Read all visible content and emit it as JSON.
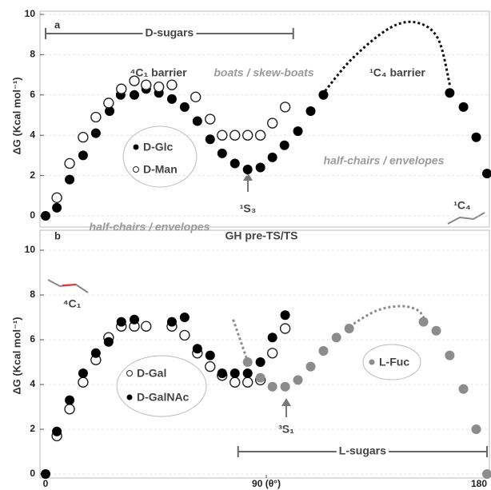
{
  "chart_data": [
    {
      "type": "scatter",
      "panel_label": "a",
      "y_label": "ΔG (Kcal mol⁻¹)",
      "xlim": [
        0,
        180
      ],
      "ylim": [
        0,
        10
      ],
      "yticks": [
        0,
        2,
        4,
        6,
        8,
        10
      ],
      "grid": true,
      "bracket": {
        "label": "D-sugars",
        "range": [
          0,
          101
        ]
      },
      "annotations": {
        "left_barrier": "⁴C₁ barrier",
        "boats": "boats / skew-boats",
        "right_barrier": "¹C₄ barrier",
        "half_chairs_right": "half-chairs / envelopes",
        "half_chairs_left": "half-chairs / envelopes",
        "min_label": "¹S₃",
        "chair_label": "¹C₄"
      },
      "series": [
        {
          "name": "D-Glc",
          "marker": "filled",
          "color": "#000000",
          "x": [
            0,
            4.6,
            9.8,
            15.3,
            20.5,
            26.1,
            30.6,
            36.2,
            41.0,
            46.2,
            51.5,
            56.7,
            61.9,
            67.1,
            72.0,
            77.2,
            82.4,
            87.6,
            92.5,
            97.4,
            102.9,
            108.1,
            113.3,
            164.8,
            170.4,
            175.6,
            180
          ],
          "values": [
            0,
            0.4,
            1.8,
            3.0,
            4.1,
            5.2,
            6.0,
            6.0,
            6.3,
            6.1,
            5.8,
            5.4,
            4.7,
            3.8,
            3.1,
            2.6,
            2.3,
            2.4,
            2.9,
            3.5,
            4.2,
            5.2,
            6.0,
            6.1,
            5.4,
            3.9,
            2.1
          ]
        },
        {
          "name": "D-Man",
          "marker": "open",
          "color": "#222222",
          "x": [
            4.6,
            9.8,
            15.3,
            20.5,
            25.7,
            30.9,
            36.2,
            41.0,
            46.2,
            51.5,
            61.2,
            67.1,
            72.0,
            77.2,
            82.4,
            87.6,
            92.5,
            97.7
          ],
          "values": [
            0.9,
            2.6,
            3.9,
            4.9,
            5.6,
            6.3,
            6.7,
            6.5,
            6.4,
            6.5,
            5.9,
            4.8,
            4.0,
            4.0,
            4.0,
            4.0,
            4.6,
            5.4
          ]
        },
        {
          "marker": "curve",
          "dashed": true,
          "color": "#111111",
          "x": [
            114,
            125,
            140,
            151,
            160,
            165
          ],
          "values": [
            6.2,
            7.8,
            9.3,
            9.6,
            8.8,
            6.4
          ]
        }
      ]
    },
    {
      "type": "scatter",
      "panel_label": "b",
      "y_label": "ΔG (Kcal mol⁻¹)",
      "xlim": [
        0,
        180
      ],
      "ylim": [
        0,
        10
      ],
      "yticks": [
        0,
        2,
        4,
        6,
        8,
        10
      ],
      "xticks": [
        0,
        {
          "value": 90,
          "label": "90 (θ°)"
        },
        180
      ],
      "grid": true,
      "bracket": {
        "label": "L-sugars",
        "range": [
          78.5,
          180
        ]
      },
      "annotations": {
        "heading": "GH pre-TS/TS",
        "chair_label": "⁴C₁",
        "min_label": "³S₁"
      },
      "series": [
        {
          "name": "D-Gal",
          "marker": "open",
          "color": "#222222",
          "x": [
            4.6,
            9.8,
            15.3,
            20.5,
            25.7,
            30.9,
            36.2,
            41.0,
            51.5,
            56.7,
            61.9,
            67.1,
            72.0,
            77.2,
            82.4,
            87.6,
            92.5,
            97.7
          ],
          "values": [
            1.7,
            2.9,
            4.1,
            5.1,
            6.1,
            6.6,
            6.6,
            6.6,
            6.6,
            6.2,
            5.4,
            4.8,
            4.4,
            4.1,
            4.1,
            4.2,
            5.4,
            6.5
          ]
        },
        {
          "name": "D-GalNAc",
          "marker": "filled",
          "color": "#000000",
          "x": [
            0,
            4.6,
            9.8,
            15.3,
            20.5,
            25.7,
            30.9,
            36.2,
            51.5,
            56.7,
            61.9,
            67.1,
            72.0,
            77.2,
            82.4,
            87.6,
            92.5,
            97.7
          ],
          "values": [
            0,
            1.9,
            3.3,
            4.5,
            5.4,
            5.9,
            6.8,
            6.9,
            6.8,
            7.0,
            5.6,
            5.3,
            4.5,
            4.5,
            4.5,
            5.0,
            6.1,
            7.1
          ]
        },
        {
          "name": "L-Fuc",
          "marker": "filled",
          "color": "#8c8c8c",
          "x": [
            82.4,
            87.6,
            92.5,
            97.7,
            102.9,
            108.1,
            113.3,
            118.6,
            123.8,
            154.1,
            159.3,
            164.8,
            170.4,
            175.6,
            180
          ],
          "values": [
            5.0,
            4.3,
            3.9,
            3.9,
            4.2,
            4.8,
            5.5,
            6.1,
            6.5,
            6.8,
            6.4,
            5.3,
            3.8,
            2.0,
            0
          ]
        },
        {
          "marker": "curve",
          "dashed": true,
          "color": "#8c8c8c",
          "x": [
            124,
            135,
            145,
            152,
            155
          ],
          "values": [
            6.6,
            7.3,
            7.5,
            7.3,
            6.8
          ]
        },
        {
          "marker": "curve",
          "dashed": true,
          "color": "#8c8c8c",
          "x": [
            76.5,
            82.5
          ],
          "values": [
            6.9,
            5.0
          ]
        }
      ]
    }
  ]
}
